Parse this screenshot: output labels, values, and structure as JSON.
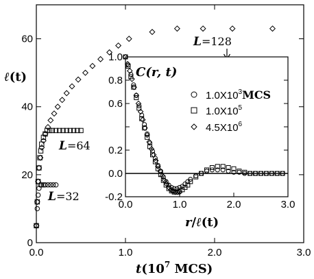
{
  "chart_data": [
    {
      "type": "scatter",
      "xlabel": "t(10⁷ MCS)",
      "ylabel": "ℓ(t)",
      "xlim": [
        0,
        3.0
      ],
      "ylim": [
        0,
        70
      ],
      "xticks": [
        "0.0",
        "1.0",
        "2.0",
        "3.0"
      ],
      "yticks": [
        "0",
        "20",
        "40",
        "60"
      ],
      "grid": false,
      "series": [
        {
          "name": "L=128",
          "marker": "diamond",
          "x": [
            0.0,
            0.01,
            0.02,
            0.03,
            0.045,
            0.06,
            0.08,
            0.1,
            0.13,
            0.16,
            0.2,
            0.24,
            0.29,
            0.34,
            0.4,
            0.47,
            0.55,
            0.63,
            0.72,
            0.82,
            0.92,
            1.04,
            1.3,
            1.58,
            1.87,
            2.2,
            2.65
          ],
          "y": [
            5,
            12,
            18,
            22,
            25,
            28,
            30,
            32,
            34,
            36,
            38,
            40,
            42,
            44,
            46,
            48,
            50,
            52,
            54,
            56,
            58,
            60,
            62,
            63,
            63,
            63,
            63
          ]
        },
        {
          "name": "L=64",
          "marker": "square",
          "x": [
            0.0,
            0.01,
            0.02,
            0.03,
            0.04,
            0.05,
            0.06,
            0.08,
            0.1,
            0.12,
            0.15,
            0.18,
            0.22,
            0.26,
            0.3,
            0.34,
            0.38,
            0.42,
            0.46,
            0.5
          ],
          "y": [
            5,
            12,
            18,
            22,
            25,
            27,
            29,
            31,
            32,
            33,
            33,
            33,
            33,
            33,
            33,
            33,
            33,
            33,
            33,
            33
          ]
        },
        {
          "name": "L=32",
          "marker": "circle",
          "x": [
            0.0,
            0.01,
            0.02,
            0.03,
            0.045,
            0.06,
            0.08,
            0.1,
            0.13,
            0.16,
            0.19,
            0.22
          ],
          "y": [
            5,
            10,
            14,
            16,
            17,
            17,
            17,
            17,
            17,
            17,
            17,
            17
          ]
        }
      ]
    },
    {
      "type": "scatter",
      "title": "C(r,t)",
      "xlabel": "r/ℓ(t)",
      "xlim": [
        0,
        3.0
      ],
      "ylim": [
        -0.2,
        1.0
      ],
      "xticks": [
        "0.0",
        "1.0",
        "2.0",
        "3.0"
      ],
      "yticks": [
        "-0.2",
        "0.0",
        "0.2",
        "0.4",
        "0.6",
        "0.8",
        "1.0"
      ],
      "legend_position": "upper-right",
      "series": [
        {
          "name": "1.0X10³ MCS",
          "marker": "circle",
          "x": [
            0.0,
            0.05,
            0.1,
            0.15,
            0.2,
            0.25,
            0.3,
            0.35,
            0.4,
            0.45,
            0.5,
            0.55,
            0.6,
            0.65,
            0.7,
            0.75,
            0.8,
            0.85,
            0.9,
            0.95,
            1.0,
            1.05,
            1.1,
            1.15,
            1.2,
            1.3,
            1.4,
            1.5,
            1.6,
            1.7,
            1.8,
            1.9,
            2.0,
            2.1,
            2.2,
            2.3,
            2.4,
            2.5,
            2.6,
            2.7,
            2.8,
            2.9
          ],
          "y": [
            1.0,
            0.93,
            0.85,
            0.76,
            0.67,
            0.58,
            0.5,
            0.42,
            0.34,
            0.26,
            0.19,
            0.13,
            0.07,
            0.02,
            -0.03,
            -0.07,
            -0.1,
            -0.12,
            -0.13,
            -0.13,
            -0.12,
            -0.11,
            -0.09,
            -0.07,
            -0.05,
            -0.02,
            0.0,
            0.02,
            0.03,
            0.03,
            0.03,
            0.02,
            0.01,
            0.01,
            0.0,
            0.0,
            0.0,
            0.0,
            0.0,
            0.0,
            0.0,
            0.0
          ]
        },
        {
          "name": "1.0X10⁵",
          "marker": "square",
          "x": [
            0.0,
            0.05,
            0.1,
            0.15,
            0.2,
            0.25,
            0.3,
            0.35,
            0.4,
            0.45,
            0.5,
            0.55,
            0.6,
            0.65,
            0.7,
            0.75,
            0.8,
            0.85,
            0.9,
            0.95,
            1.0,
            1.05,
            1.1,
            1.15,
            1.2,
            1.3,
            1.4,
            1.5,
            1.6,
            1.7,
            1.8,
            1.9,
            2.0,
            2.1,
            2.2,
            2.3,
            2.4,
            2.5,
            2.6,
            2.7,
            2.8,
            2.9
          ],
          "y": [
            1.0,
            0.92,
            0.83,
            0.74,
            0.65,
            0.56,
            0.47,
            0.39,
            0.31,
            0.23,
            0.16,
            0.1,
            0.04,
            -0.01,
            -0.06,
            -0.1,
            -0.13,
            -0.15,
            -0.16,
            -0.16,
            -0.15,
            -0.14,
            -0.12,
            -0.1,
            -0.07,
            -0.03,
            0.0,
            0.03,
            0.05,
            0.06,
            0.06,
            0.05,
            0.04,
            0.02,
            0.01,
            0.0,
            0.0,
            0.0,
            0.0,
            0.0,
            0.0,
            0.0
          ]
        },
        {
          "name": "4.5X10⁶",
          "marker": "diamond",
          "x": [
            0.0,
            0.04,
            0.08,
            0.12,
            0.16,
            0.2,
            0.24,
            0.28,
            0.32,
            0.36,
            0.4,
            0.44,
            0.48,
            0.52,
            0.56,
            0.6,
            0.64,
            0.68,
            0.72,
            0.76,
            0.8,
            0.84,
            0.88,
            0.92,
            0.96,
            1.0
          ],
          "y": [
            1.0,
            0.94,
            0.88,
            0.81,
            0.74,
            0.67,
            0.6,
            0.53,
            0.46,
            0.39,
            0.33,
            0.27,
            0.21,
            0.16,
            0.11,
            0.06,
            0.02,
            -0.02,
            -0.06,
            -0.09,
            -0.12,
            -0.14,
            -0.15,
            -0.16,
            -0.16,
            -0.16
          ]
        }
      ]
    }
  ],
  "annotations": {
    "l128_prefix": "L",
    "l128_value": "=128",
    "l64_prefix": "L",
    "l64_value": "=64",
    "l32_prefix": "L",
    "l32_value": "=32"
  },
  "axis_text": {
    "main_x_prefix": "t",
    "main_x_rest": "(10",
    "main_x_exp": "7",
    "main_x_units": " MCS)",
    "main_y_symbol": "ℓ",
    "main_y_rest": "(t)",
    "inset_title_symbol": "C",
    "inset_title_rest": "(r, t)",
    "inset_x_r": "r",
    "inset_x_slash": "/",
    "inset_x_ell": "ℓ",
    "inset_x_t": "(t)"
  },
  "legend": {
    "entry1_base": "1.0X10",
    "entry1_exp": "3",
    "entry1_units": "MCS",
    "entry2_base": "1.0X10",
    "entry2_exp": "5",
    "entry3_base": "4.5X10",
    "entry3_exp": "6"
  }
}
